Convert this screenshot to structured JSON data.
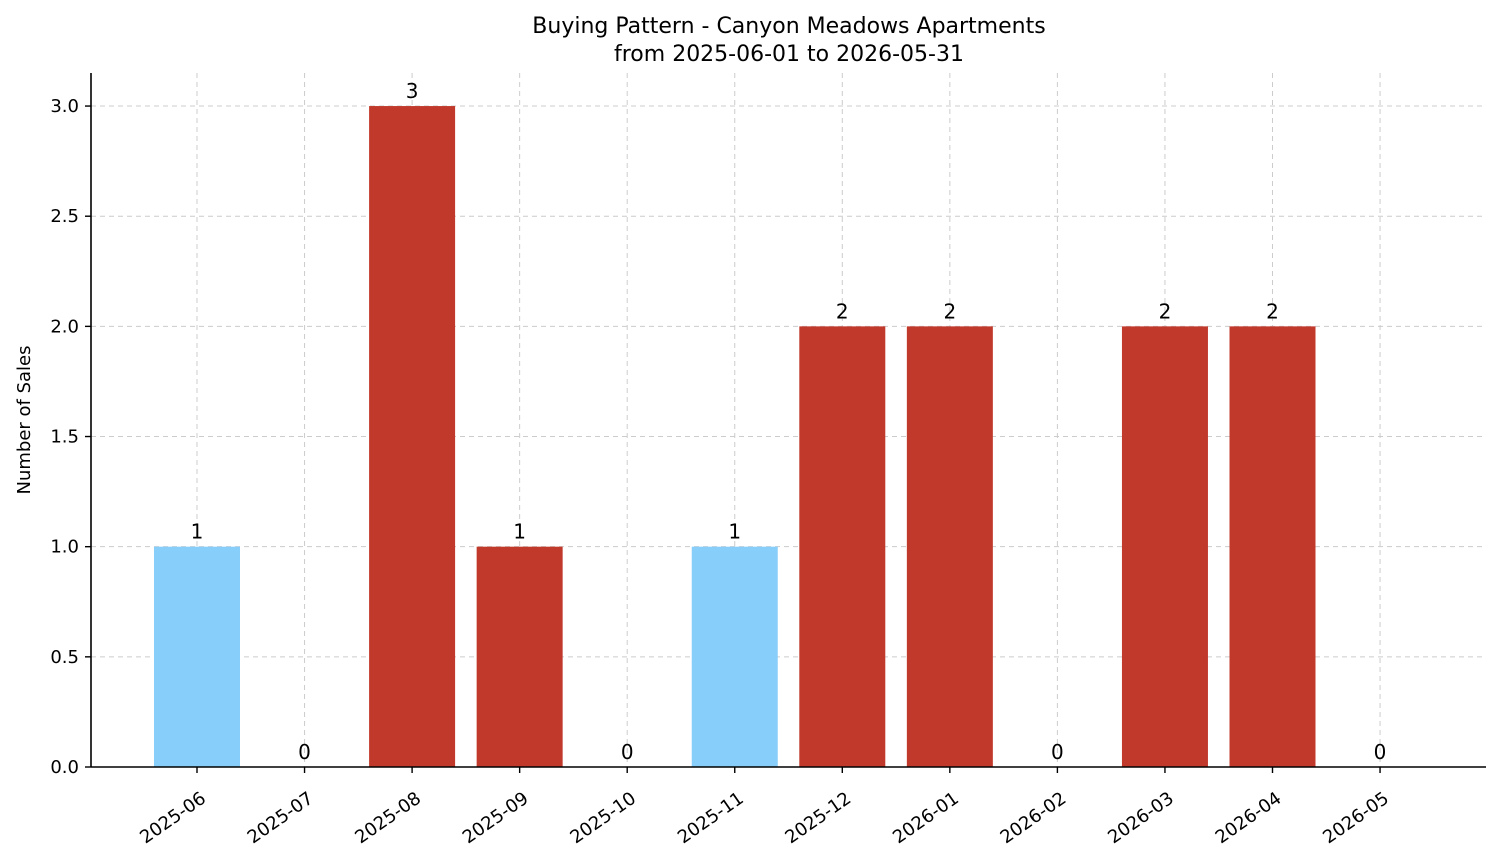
{
  "chart_data": {
    "type": "bar",
    "title": "Buying Pattern - Canyon Meadows Apartments",
    "subtitle": "from 2025-06-01 to 2026-05-31",
    "xlabel": "",
    "ylabel": "Number of Sales",
    "categories": [
      "2025-06",
      "2025-07",
      "2025-08",
      "2025-09",
      "2025-10",
      "2025-11",
      "2025-12",
      "2026-01",
      "2026-02",
      "2026-03",
      "2026-04",
      "2026-05"
    ],
    "values": [
      1,
      0,
      3,
      1,
      0,
      1,
      2,
      2,
      0,
      2,
      2,
      0
    ],
    "data_labels": [
      "1",
      "0",
      "3",
      "1",
      "0",
      "1",
      "2",
      "2",
      "0",
      "2",
      "2",
      "0"
    ],
    "bar_colors": [
      "#87CEFA",
      "#87CEFA",
      "#C0392B",
      "#C0392B",
      "#87CEFA",
      "#87CEFA",
      "#C0392B",
      "#C0392B",
      "#87CEFA",
      "#C0392B",
      "#C0392B",
      "#87CEFA"
    ],
    "ylim": [
      0,
      3.15
    ],
    "yticks": [
      0.0,
      0.5,
      1.0,
      1.5,
      2.0,
      2.5,
      3.0
    ],
    "ytick_labels": [
      "0.0",
      "0.5",
      "1.0",
      "1.5",
      "2.0",
      "2.5",
      "3.0"
    ],
    "grid": true,
    "legend": "none"
  }
}
